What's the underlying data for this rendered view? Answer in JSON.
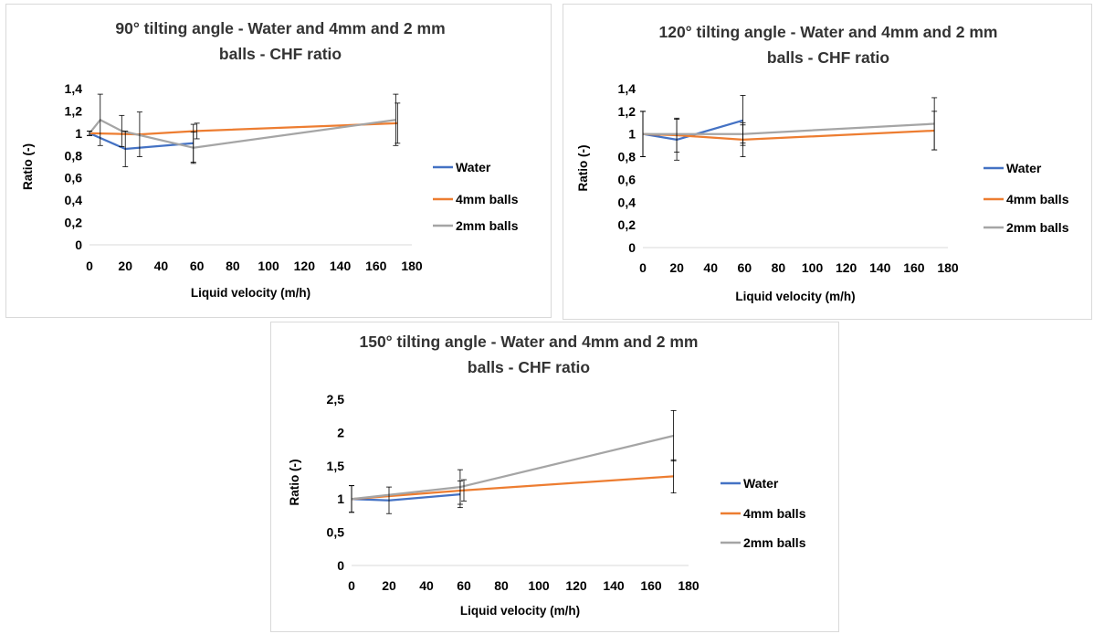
{
  "chart_data": [
    {
      "type": "line",
      "title": [
        "90° tilting angle - Water and 4mm and 2 mm",
        "balls - CHF ratio"
      ],
      "xlabel": "Liquid velocity (m/h)",
      "ylabel": "Ratio (-)",
      "xlim": [
        0,
        180
      ],
      "ylim": [
        0,
        1.4
      ],
      "xticks": [
        "0",
        "20",
        "40",
        "60",
        "80",
        "100",
        "120",
        "140",
        "160",
        "180"
      ],
      "yticks": [
        "0",
        "0,2",
        "0,4",
        "0,6",
        "0,8",
        "1",
        "1,2",
        "1,4"
      ],
      "grid": false,
      "legend": "right",
      "series": [
        {
          "name": "Water",
          "color": "#4472c4",
          "points": [
            [
              0,
              1.0
            ],
            [
              20,
              0.86
            ],
            [
              58,
              0.91
            ]
          ],
          "err": [
            0.02,
            0.16,
            0.17
          ]
        },
        {
          "name": "4mm balls",
          "color": "#ed7d31",
          "points": [
            [
              0,
              1.0
            ],
            [
              28,
              0.99
            ],
            [
              60,
              1.02
            ],
            [
              172,
              1.09
            ]
          ],
          "err": [
            0.02,
            0.2,
            0.07,
            0.18
          ]
        },
        {
          "name": "2mm balls",
          "color": "#a5a5a5",
          "points": [
            [
              0,
              1.0
            ],
            [
              6,
              1.12
            ],
            [
              18,
              1.02
            ],
            [
              58,
              0.87
            ],
            [
              171,
              1.12
            ]
          ],
          "err": [
            0.02,
            0.23,
            0.14,
            0.14,
            0.23
          ]
        }
      ]
    },
    {
      "type": "line",
      "title": [
        "120° tilting angle - Water and 4mm and 2 mm",
        "balls - CHF ratio"
      ],
      "xlabel": "Liquid velocity (m/h)",
      "ylabel": "Ratio (-)",
      "xlim": [
        0,
        180
      ],
      "ylim": [
        0,
        1.4
      ],
      "xticks": [
        "0",
        "20",
        "40",
        "60",
        "80",
        "100",
        "120",
        "140",
        "160",
        "180"
      ],
      "yticks": [
        "0",
        "0,2",
        "0,4",
        "0,6",
        "0,8",
        "1",
        "1,2",
        "1,4"
      ],
      "grid": false,
      "legend": "right",
      "series": [
        {
          "name": "Water",
          "color": "#4472c4",
          "points": [
            [
              0,
              1.0
            ],
            [
              20,
              0.95
            ],
            [
              59,
              1.12
            ]
          ],
          "err": [
            0.2,
            0.18,
            0.22
          ]
        },
        {
          "name": "4mm balls",
          "color": "#ed7d31",
          "points": [
            [
              0,
              1.0
            ],
            [
              20,
              0.99
            ],
            [
              59,
              0.95
            ],
            [
              172,
              1.03
            ]
          ],
          "err": [
            0.2,
            0.15,
            0.15,
            0.17
          ]
        },
        {
          "name": "2mm balls",
          "color": "#a5a5a5",
          "points": [
            [
              0,
              1.0
            ],
            [
              59,
              1.0
            ],
            [
              172,
              1.09
            ]
          ],
          "err": [
            0.2,
            0.08,
            0.23
          ]
        }
      ]
    },
    {
      "type": "line",
      "title": [
        "150° tilting angle - Water and 4mm and 2 mm",
        "balls - CHF ratio"
      ],
      "xlabel": "Liquid velocity (m/h)",
      "ylabel": "Ratio (-)",
      "xlim": [
        0,
        180
      ],
      "ylim": [
        0,
        2.5
      ],
      "xticks": [
        "0",
        "20",
        "40",
        "60",
        "80",
        "100",
        "120",
        "140",
        "160",
        "180"
      ],
      "yticks": [
        "0",
        "0,5",
        "1",
        "1,5",
        "2",
        "2,5"
      ],
      "grid": false,
      "legend": "right",
      "series": [
        {
          "name": "Water",
          "color": "#4472c4",
          "points": [
            [
              0,
              1.0
            ],
            [
              20,
              0.98
            ],
            [
              58,
              1.07
            ]
          ],
          "err": [
            0.2,
            0.2,
            0.2
          ]
        },
        {
          "name": "4mm balls",
          "color": "#ed7d31",
          "points": [
            [
              0,
              1.0
            ],
            [
              60,
              1.13
            ],
            [
              172,
              1.34
            ]
          ],
          "err": [
            0.2,
            0.16,
            0.25
          ]
        },
        {
          "name": "2mm balls",
          "color": "#a5a5a5",
          "points": [
            [
              0,
              1.0
            ],
            [
              58,
              1.18
            ],
            [
              172,
              1.95
            ]
          ],
          "err": [
            0.2,
            0.26,
            0.38
          ]
        }
      ]
    }
  ]
}
